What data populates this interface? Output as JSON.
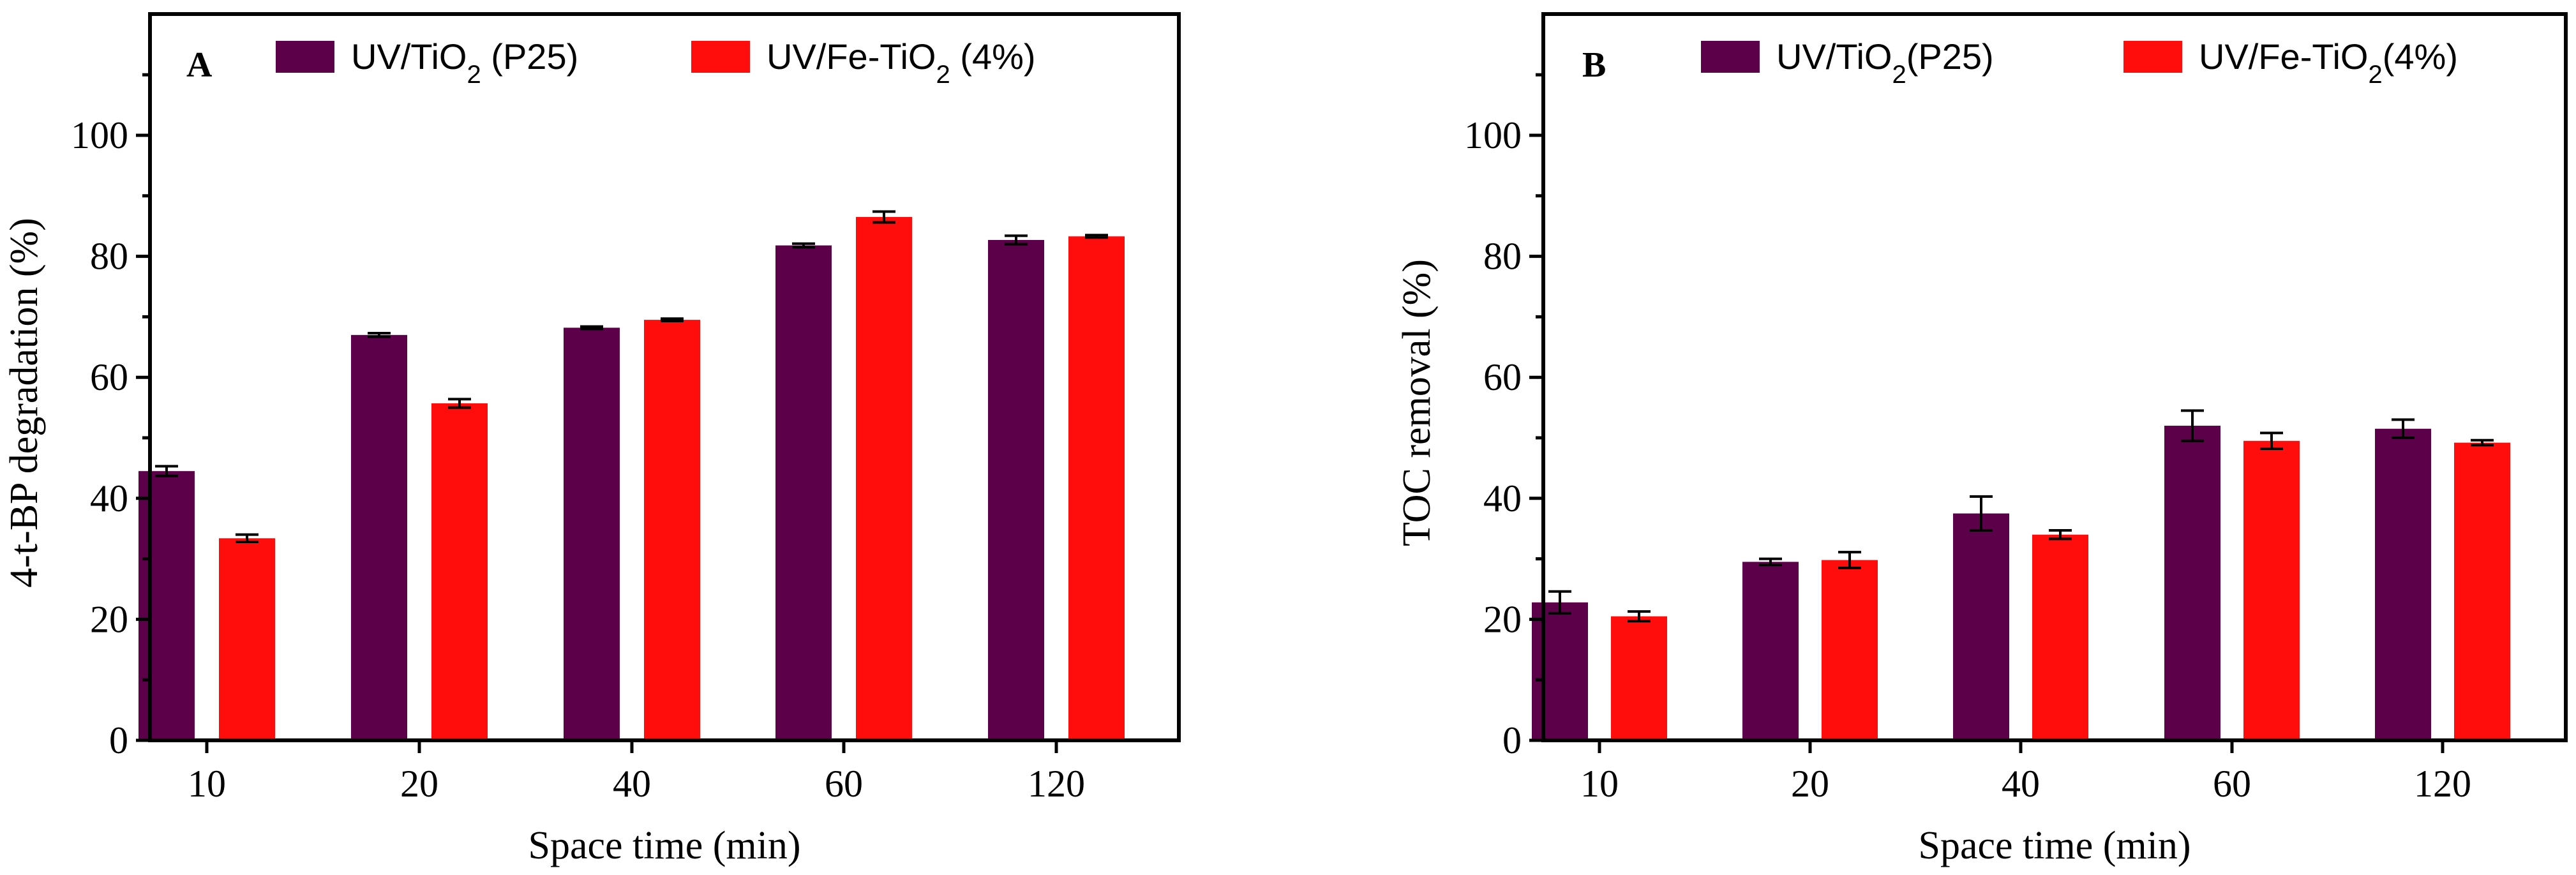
{
  "colors": {
    "series_1": "#5c004a",
    "series_2": "#ff0d0d"
  },
  "chart_data": [
    {
      "type": "bar",
      "panel_label": "A",
      "categories": [
        "10",
        "20",
        "40",
        "60",
        "120"
      ],
      "series": [
        {
          "name": "UV/TiO2 (P25)",
          "values": [
            44.5,
            67.0,
            68.2,
            81.8,
            82.7
          ],
          "errors": [
            0.8,
            0.3,
            0.2,
            0.3,
            0.7
          ]
        },
        {
          "name": "UV/Fe-TiO2 (4%)",
          "values": [
            33.4,
            55.7,
            69.5,
            86.5,
            83.3
          ],
          "errors": [
            0.6,
            0.7,
            0.2,
            0.9,
            0.2
          ]
        }
      ],
      "xlabel": "Space time (min)",
      "ylabel": "4-t-BP degradation (%)",
      "ylim": [
        0,
        100
      ],
      "yticks": [
        "0",
        "20",
        "40",
        "60",
        "80",
        "100"
      ],
      "legend": "top",
      "grid": false
    },
    {
      "type": "bar",
      "panel_label": "B",
      "categories": [
        "10",
        "20",
        "40",
        "60",
        "120"
      ],
      "series": [
        {
          "name": "UV/TiO2(P25)",
          "values": [
            22.8,
            29.5,
            37.5,
            52.0,
            51.5
          ],
          "errors": [
            1.8,
            0.5,
            2.8,
            2.5,
            1.5
          ]
        },
        {
          "name": "UV/Fe-TiO2(4%)",
          "values": [
            20.5,
            29.8,
            34.0,
            49.5,
            49.2
          ],
          "errors": [
            0.8,
            1.3,
            0.7,
            1.3,
            0.4
          ]
        }
      ],
      "xlabel": "Space time (min)",
      "ylabel": "TOC removal (%)",
      "ylim": [
        0,
        100
      ],
      "yticks": [
        "0",
        "20",
        "40",
        "60",
        "80",
        "100"
      ],
      "legend": "top",
      "grid": false
    }
  ]
}
